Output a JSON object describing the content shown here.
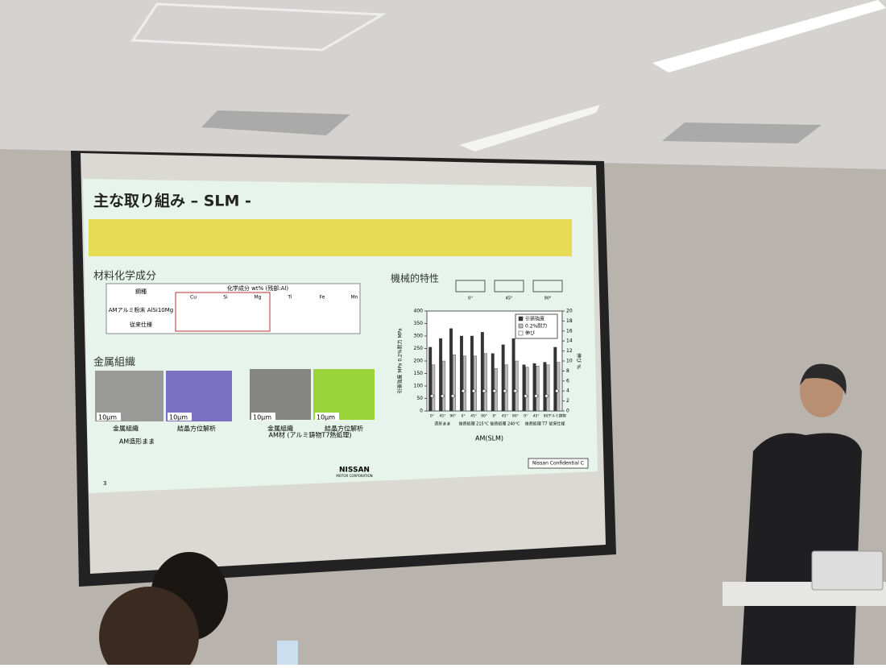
{
  "slide": {
    "title": "主な取り組み – SLM -",
    "page_number": "3",
    "confidential": "Nissan Confidential C",
    "logo": "NISSAN",
    "logo_sub": "MOTOR CORPORATION",
    "composition": {
      "heading": "材料化学成分",
      "header_grade": "鋼種",
      "header_comp": "化学成分 wt% (残部:Al)",
      "elements": [
        "Cu",
        "Si",
        "Mg",
        "Ti",
        "Fe",
        "Mn"
      ],
      "rows": [
        "AMアルミ粉末 AlSi10Mg",
        "従来仕様"
      ]
    },
    "microstructure": {
      "heading": "金属組織",
      "images": [
        {
          "scale": "10μm",
          "caption": "金属組織"
        },
        {
          "scale": "10μm",
          "caption": "結晶方位解析"
        },
        {
          "scale": "10μm",
          "caption": "金属組織"
        },
        {
          "scale": "10μm",
          "caption": "結晶方位解析"
        }
      ],
      "left_note": "AM造形まま",
      "right_note": "AM材 (アルミ鋳物T7熱処理)"
    },
    "mechanical": {
      "heading": "機械的特性",
      "orientations": [
        "0°",
        "45°",
        "90°"
      ]
    }
  },
  "chart_data": {
    "type": "bar",
    "y_label": "引張強度 MPa 0.2%耐力 MPa",
    "y2_label": "伸び %",
    "categories": [
      "0°",
      "45°",
      "90°",
      "0°",
      "45°",
      "90°",
      "0°",
      "45°",
      "90°",
      "0°",
      "45°",
      "90°",
      "アルミ鋳物"
    ],
    "groups": [
      "造形まま",
      "後熱処理 215°C",
      "後熱処理 240°C",
      "後熱処理 T7",
      "従来仕様"
    ],
    "supergroup": "AM(SLM)",
    "series": [
      {
        "name": "引張強度",
        "color": "#333333",
        "values": [
          255,
          290,
          330,
          300,
          300,
          315,
          230,
          265,
          290,
          185,
          190,
          195,
          255
        ]
      },
      {
        "name": "0.2%耐力",
        "color": "#bbbbbb",
        "values": [
          185,
          200,
          225,
          220,
          220,
          230,
          170,
          185,
          200,
          175,
          180,
          185,
          195
        ]
      },
      {
        "name": "伸び",
        "color": "#ffffff",
        "axis": "y2",
        "values": [
          3,
          3,
          3,
          4,
          4,
          4,
          4,
          4,
          4,
          3,
          3,
          3,
          4
        ]
      }
    ],
    "ylim": [
      0,
      400
    ],
    "yticks": [
      0,
      50,
      100,
      150,
      200,
      250,
      300,
      350,
      400
    ],
    "y2lim": [
      0,
      20
    ],
    "y2ticks": [
      0,
      2,
      4,
      6,
      8,
      10,
      12,
      14,
      16,
      18,
      20
    ]
  }
}
